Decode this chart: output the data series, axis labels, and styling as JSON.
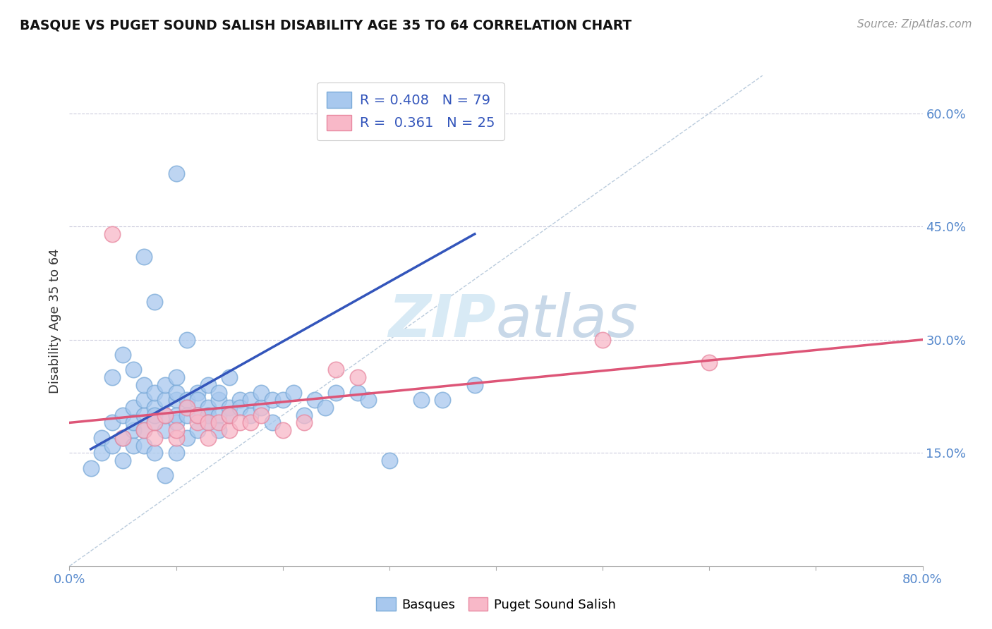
{
  "title": "BASQUE VS PUGET SOUND SALISH DISABILITY AGE 35 TO 64 CORRELATION CHART",
  "source": "Source: ZipAtlas.com",
  "ylabel": "Disability Age 35 to 64",
  "xlim": [
    0.0,
    0.8
  ],
  "ylim": [
    0.0,
    0.65
  ],
  "ytick_labels_right": [
    "15.0%",
    "30.0%",
    "45.0%",
    "60.0%"
  ],
  "ytick_vals_right": [
    0.15,
    0.3,
    0.45,
    0.6
  ],
  "blue_R": "0.408",
  "blue_N": "79",
  "pink_R": "0.361",
  "pink_N": "25",
  "blue_color": "#A8C8EE",
  "blue_edge_color": "#7AAAD8",
  "pink_color": "#F8B8C8",
  "pink_edge_color": "#E888A0",
  "blue_line_color": "#3355BB",
  "pink_line_color": "#DD5577",
  "ref_line_color": "#BBCCDD",
  "background_color": "#FFFFFF",
  "watermark_color": "#D8EAF5",
  "legend_text_color": "#3355BB",
  "tick_color": "#5588CC",
  "blue_scatter_x": [
    0.02,
    0.03,
    0.03,
    0.04,
    0.04,
    0.05,
    0.05,
    0.05,
    0.06,
    0.06,
    0.06,
    0.06,
    0.07,
    0.07,
    0.07,
    0.07,
    0.07,
    0.08,
    0.08,
    0.08,
    0.08,
    0.08,
    0.09,
    0.09,
    0.09,
    0.09,
    0.1,
    0.1,
    0.1,
    0.1,
    0.1,
    0.1,
    0.11,
    0.11,
    0.11,
    0.11,
    0.12,
    0.12,
    0.12,
    0.12,
    0.13,
    0.13,
    0.13,
    0.13,
    0.14,
    0.14,
    0.14,
    0.14,
    0.15,
    0.15,
    0.15,
    0.16,
    0.16,
    0.17,
    0.17,
    0.18,
    0.18,
    0.19,
    0.19,
    0.2,
    0.21,
    0.22,
    0.23,
    0.24,
    0.25,
    0.27,
    0.28,
    0.3,
    0.33,
    0.35,
    0.1,
    0.11,
    0.06,
    0.04,
    0.05,
    0.08,
    0.38,
    0.07,
    0.09
  ],
  "blue_scatter_y": [
    0.13,
    0.17,
    0.15,
    0.16,
    0.19,
    0.14,
    0.17,
    0.2,
    0.18,
    0.21,
    0.16,
    0.19,
    0.2,
    0.18,
    0.22,
    0.16,
    0.24,
    0.19,
    0.21,
    0.2,
    0.23,
    0.15,
    0.18,
    0.22,
    0.24,
    0.2,
    0.19,
    0.22,
    0.25,
    0.15,
    0.2,
    0.23,
    0.21,
    0.22,
    0.2,
    0.17,
    0.23,
    0.22,
    0.2,
    0.18,
    0.24,
    0.21,
    0.2,
    0.19,
    0.22,
    0.2,
    0.23,
    0.18,
    0.21,
    0.25,
    0.2,
    0.22,
    0.21,
    0.2,
    0.22,
    0.21,
    0.23,
    0.19,
    0.22,
    0.22,
    0.23,
    0.2,
    0.22,
    0.21,
    0.23,
    0.23,
    0.22,
    0.14,
    0.22,
    0.22,
    0.52,
    0.3,
    0.26,
    0.25,
    0.28,
    0.35,
    0.24,
    0.41,
    0.12
  ],
  "pink_scatter_x": [
    0.04,
    0.05,
    0.07,
    0.08,
    0.09,
    0.1,
    0.11,
    0.12,
    0.12,
    0.13,
    0.14,
    0.15,
    0.15,
    0.16,
    0.17,
    0.18,
    0.2,
    0.22,
    0.25,
    0.27,
    0.5,
    0.6,
    0.08,
    0.1,
    0.13
  ],
  "pink_scatter_y": [
    0.44,
    0.17,
    0.18,
    0.19,
    0.2,
    0.17,
    0.21,
    0.19,
    0.2,
    0.19,
    0.19,
    0.18,
    0.2,
    0.19,
    0.19,
    0.2,
    0.18,
    0.19,
    0.26,
    0.25,
    0.3,
    0.27,
    0.17,
    0.18,
    0.17
  ],
  "blue_line_x": [
    0.02,
    0.38
  ],
  "blue_line_y": [
    0.155,
    0.44
  ],
  "pink_line_x": [
    0.0,
    0.8
  ],
  "pink_line_y": [
    0.19,
    0.3
  ],
  "ref_line_x": [
    0.0,
    0.65
  ],
  "ref_line_y": [
    0.0,
    0.65
  ]
}
